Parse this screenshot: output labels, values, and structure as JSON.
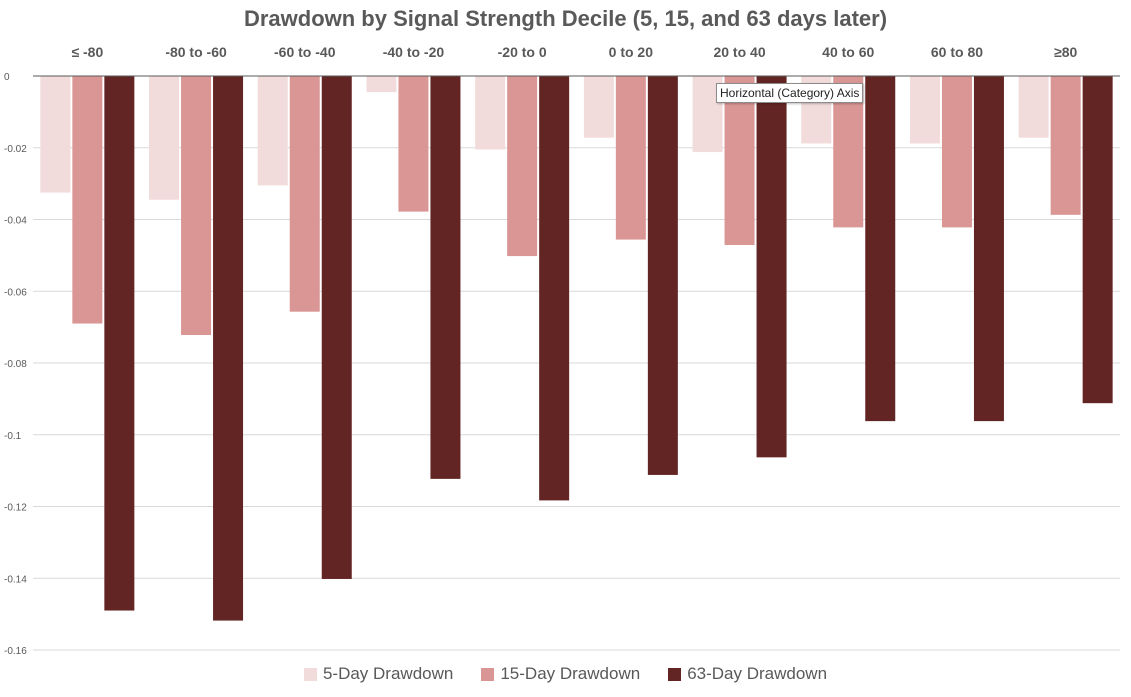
{
  "tooltip": {
    "text": "Horizontal (Category) Axis"
  },
  "chart_data": {
    "type": "bar",
    "title": "Drawdown by Signal Strength Decile (5, 15, and 63 days later)",
    "xlabel": "",
    "ylabel": "",
    "categories": [
      "≤ -80",
      "-80 to -60",
      "-60 to -40",
      "-40 to -20",
      "-20 to 0",
      "0 to 20",
      "20 to 40",
      "40 to 60",
      "60 to 80",
      "≥80"
    ],
    "ylim": [
      -0.16,
      0
    ],
    "yticks": [
      0,
      -0.02,
      -0.04,
      -0.06,
      -0.08,
      -0.1,
      -0.12,
      -0.14,
      -0.16
    ],
    "ytick_labels": [
      "0",
      "-0.02",
      "-0.04",
      "-0.06",
      "-0.08",
      "-0.1",
      "-0.12",
      "-0.14",
      "-0.16"
    ],
    "category_axis_position": "top",
    "grid": true,
    "legend_position": "bottom",
    "series": [
      {
        "name": "5-Day Drawdown",
        "color": "#f2dcdb",
        "values": [
          -0.0325,
          -0.0345,
          -0.0305,
          -0.0045,
          -0.0205,
          -0.0172,
          -0.0212,
          -0.0188,
          -0.0188,
          -0.0172
        ]
      },
      {
        "name": "15-Day Drawdown",
        "color": "#d99694",
        "values": [
          -0.069,
          -0.0722,
          -0.0657,
          -0.0378,
          -0.0502,
          -0.0456,
          -0.0471,
          -0.0422,
          -0.0422,
          -0.0387
        ]
      },
      {
        "name": "63-Day Drawdown",
        "color": "#632523",
        "values": [
          -0.149,
          -0.1518,
          -0.1402,
          -0.1123,
          -0.1183,
          -0.1112,
          -0.1063,
          -0.0962,
          -0.0962,
          -0.0912
        ]
      }
    ]
  }
}
